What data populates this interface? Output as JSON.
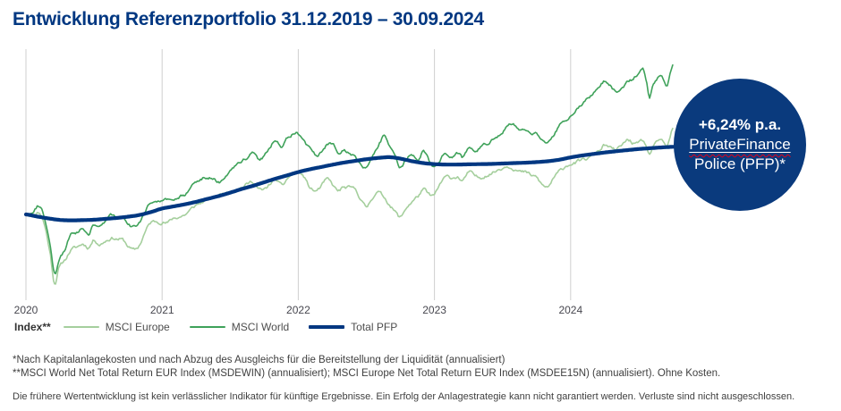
{
  "header": {
    "title": "Entwicklung Referenzportfolio 31.12.2019 – 30.09.2024"
  },
  "colors": {
    "brand_blue": "#003781",
    "msci_europe_green": "#a5cf9d",
    "msci_world_green": "#3fa25a",
    "grid_gray": "#cfcfcf",
    "axis_text": "#47474f",
    "badge_squiggle_red": "#e2001a"
  },
  "badge": {
    "line1": "+6,24% p.a.",
    "line2": "PrivateFinance",
    "line3": "Police (PFP)*",
    "bg_color": "#0a3a7d",
    "text_color": "#ffffff"
  },
  "legend": {
    "title": "Index**",
    "items": [
      {
        "label": "MSCI Europe",
        "color": "#a5cf9d"
      },
      {
        "label": "MSCI World",
        "color": "#3fa25a"
      },
      {
        "label": "Total PFP",
        "color": "#003781"
      }
    ]
  },
  "footnotes": [
    "*Nach Kapitalanlagekosten und nach Abzug des Ausgleichs für die Bereitstellung der Liquidität (annualisiert)",
    "**MSCI World Net Total Return EUR Index (MSDEWIN) (annualisiert); MSCI Europe Net Total Return EUR Index (MSDEE15N) (annualisiert). Ohne Kosten."
  ],
  "disclaimer": "Die frühere Wertentwicklung ist kein verlässlicher Indikator für künftige Ergebnisse. Ein Erfolg der Anlagestrategie kann nicht garantiert werden. Verluste sind nicht ausgeschlossen.",
  "chart_data": {
    "type": "line",
    "title": "Entwicklung Referenzportfolio 31.12.2019 – 30.09.2024",
    "x_unit": "decimal_year",
    "x_range": [
      2020.0,
      2024.95
    ],
    "x_ticks": [
      "2020",
      "2021",
      "2022",
      "2023",
      "2024"
    ],
    "x_tick_values": [
      2020,
      2021,
      2022,
      2023,
      2024
    ],
    "y_axis_visible": false,
    "index_base": 100,
    "y_range_estimate": [
      60,
      182
    ],
    "grid": "vertical-only",
    "legend_position": "bottom-left",
    "series": [
      {
        "name": "MSCI Europe",
        "color": "#a5cf9d",
        "width": 1.6,
        "noise": 1.2,
        "points": [
          [
            2020.0,
            100
          ],
          [
            2020.04,
            99.5
          ],
          [
            2020.1,
            101
          ],
          [
            2020.14,
            94
          ],
          [
            2020.18,
            80
          ],
          [
            2020.21,
            66.5
          ],
          [
            2020.24,
            73.5
          ],
          [
            2020.29,
            78
          ],
          [
            2020.33,
            82.5
          ],
          [
            2020.38,
            84
          ],
          [
            2020.42,
            85.5
          ],
          [
            2020.46,
            84
          ],
          [
            2020.5,
            87.5
          ],
          [
            2020.54,
            85.5
          ],
          [
            2020.58,
            87
          ],
          [
            2020.63,
            88.5
          ],
          [
            2020.67,
            88
          ],
          [
            2020.71,
            87.5
          ],
          [
            2020.75,
            84.5
          ],
          [
            2020.79,
            82.5
          ],
          [
            2020.83,
            84.5
          ],
          [
            2020.88,
            92
          ],
          [
            2020.92,
            96
          ],
          [
            2021.0,
            96.5
          ],
          [
            2021.04,
            96
          ],
          [
            2021.08,
            98
          ],
          [
            2021.17,
            100
          ],
          [
            2021.25,
            104.5
          ],
          [
            2021.33,
            107
          ],
          [
            2021.42,
            109.5
          ],
          [
            2021.5,
            111.5
          ],
          [
            2021.58,
            113.5
          ],
          [
            2021.63,
            115
          ],
          [
            2021.67,
            116
          ],
          [
            2021.71,
            112.5
          ],
          [
            2021.75,
            112
          ],
          [
            2021.83,
            117
          ],
          [
            2021.88,
            114
          ],
          [
            2021.92,
            117.5
          ],
          [
            2021.96,
            120
          ],
          [
            2022.0,
            120.5
          ],
          [
            2022.04,
            118.5
          ],
          [
            2022.08,
            113.5
          ],
          [
            2022.13,
            111.5
          ],
          [
            2022.17,
            114
          ],
          [
            2022.21,
            117
          ],
          [
            2022.25,
            114.5
          ],
          [
            2022.29,
            111.5
          ],
          [
            2022.33,
            113
          ],
          [
            2022.42,
            112
          ],
          [
            2022.46,
            107.5
          ],
          [
            2022.5,
            103.5
          ],
          [
            2022.54,
            108
          ],
          [
            2022.58,
            111
          ],
          [
            2022.63,
            108.5
          ],
          [
            2022.67,
            105
          ],
          [
            2022.71,
            101.5
          ],
          [
            2022.75,
            98.5
          ],
          [
            2022.79,
            103
          ],
          [
            2022.83,
            106
          ],
          [
            2022.88,
            109
          ],
          [
            2022.92,
            112
          ],
          [
            2022.96,
            109.5
          ],
          [
            2023.0,
            109.5
          ],
          [
            2023.04,
            114.5
          ],
          [
            2023.08,
            118
          ],
          [
            2023.13,
            118
          ],
          [
            2023.17,
            118.5
          ],
          [
            2023.21,
            116.5
          ],
          [
            2023.25,
            120.5
          ],
          [
            2023.29,
            119
          ],
          [
            2023.33,
            118
          ],
          [
            2023.38,
            119.5
          ],
          [
            2023.42,
            120.5
          ],
          [
            2023.5,
            123
          ],
          [
            2023.54,
            124
          ],
          [
            2023.58,
            123
          ],
          [
            2023.63,
            121
          ],
          [
            2023.67,
            120.5
          ],
          [
            2023.71,
            119
          ],
          [
            2023.75,
            118
          ],
          [
            2023.79,
            114.5
          ],
          [
            2023.83,
            113.5
          ],
          [
            2023.88,
            118
          ],
          [
            2023.92,
            121
          ],
          [
            2023.96,
            123.5
          ],
          [
            2024.0,
            125
          ],
          [
            2024.04,
            125.5
          ],
          [
            2024.08,
            126.5
          ],
          [
            2024.13,
            127.5
          ],
          [
            2024.17,
            129.5
          ],
          [
            2024.21,
            131.5
          ],
          [
            2024.25,
            134
          ],
          [
            2024.29,
            132.5
          ],
          [
            2024.33,
            131.5
          ],
          [
            2024.38,
            134
          ],
          [
            2024.42,
            136.5
          ],
          [
            2024.46,
            135
          ],
          [
            2024.5,
            134.5
          ],
          [
            2024.53,
            136
          ],
          [
            2024.56,
            132
          ],
          [
            2024.58,
            129.5
          ],
          [
            2024.6,
            132.5
          ],
          [
            2024.63,
            134.5
          ],
          [
            2024.65,
            136
          ],
          [
            2024.67,
            136.5
          ],
          [
            2024.69,
            134
          ],
          [
            2024.71,
            133
          ],
          [
            2024.73,
            137.5
          ],
          [
            2024.75,
            142
          ]
        ]
      },
      {
        "name": "MSCI World",
        "color": "#3fa25a",
        "width": 1.6,
        "noise": 1.2,
        "points": [
          [
            2020.0,
            100
          ],
          [
            2020.04,
            101.5
          ],
          [
            2020.1,
            104.5
          ],
          [
            2020.14,
            97
          ],
          [
            2020.18,
            83
          ],
          [
            2020.21,
            70.5
          ],
          [
            2020.24,
            77
          ],
          [
            2020.29,
            83
          ],
          [
            2020.33,
            90
          ],
          [
            2020.38,
            91.5
          ],
          [
            2020.42,
            93
          ],
          [
            2020.46,
            91
          ],
          [
            2020.5,
            95
          ],
          [
            2020.54,
            93.5
          ],
          [
            2020.58,
            96.5
          ],
          [
            2020.63,
            99.5
          ],
          [
            2020.67,
            98.5
          ],
          [
            2020.71,
            98
          ],
          [
            2020.75,
            95.5
          ],
          [
            2020.79,
            93.5
          ],
          [
            2020.83,
            96
          ],
          [
            2020.88,
            102
          ],
          [
            2020.92,
            106.3
          ],
          [
            2021.0,
            106.5
          ],
          [
            2021.04,
            106.8
          ],
          [
            2021.08,
            107.5
          ],
          [
            2021.17,
            110
          ],
          [
            2021.25,
            116.5
          ],
          [
            2021.33,
            118.5
          ],
          [
            2021.42,
            116
          ],
          [
            2021.46,
            119
          ],
          [
            2021.5,
            122
          ],
          [
            2021.58,
            126
          ],
          [
            2021.63,
            128
          ],
          [
            2021.67,
            131
          ],
          [
            2021.71,
            127.5
          ],
          [
            2021.75,
            129.5
          ],
          [
            2021.83,
            136
          ],
          [
            2021.88,
            133.5
          ],
          [
            2021.92,
            137.5
          ],
          [
            2021.96,
            139.5
          ],
          [
            2022.0,
            139.5
          ],
          [
            2022.04,
            136
          ],
          [
            2022.08,
            132.5
          ],
          [
            2022.13,
            129
          ],
          [
            2022.17,
            131.5
          ],
          [
            2022.21,
            134
          ],
          [
            2022.25,
            134.5
          ],
          [
            2022.29,
            130.5
          ],
          [
            2022.33,
            131.5
          ],
          [
            2022.42,
            128.5
          ],
          [
            2022.46,
            124.5
          ],
          [
            2022.5,
            122.5
          ],
          [
            2022.54,
            127.5
          ],
          [
            2022.58,
            133
          ],
          [
            2022.63,
            138
          ],
          [
            2022.67,
            132.5
          ],
          [
            2022.71,
            127.5
          ],
          [
            2022.75,
            122.5
          ],
          [
            2022.79,
            126.5
          ],
          [
            2022.83,
            130
          ],
          [
            2022.88,
            126.5
          ],
          [
            2022.92,
            132
          ],
          [
            2022.96,
            126.5
          ],
          [
            2023.0,
            123.5
          ],
          [
            2023.04,
            127.5
          ],
          [
            2023.08,
            130.5
          ],
          [
            2023.13,
            128.5
          ],
          [
            2023.17,
            130.5
          ],
          [
            2023.21,
            128
          ],
          [
            2023.25,
            131.5
          ],
          [
            2023.29,
            131
          ],
          [
            2023.33,
            132.5
          ],
          [
            2023.38,
            134
          ],
          [
            2023.42,
            136
          ],
          [
            2023.5,
            140.5
          ],
          [
            2023.54,
            143.5
          ],
          [
            2023.58,
            144
          ],
          [
            2023.63,
            142.5
          ],
          [
            2023.67,
            142
          ],
          [
            2023.71,
            140
          ],
          [
            2023.75,
            139.5
          ],
          [
            2023.79,
            135.5
          ],
          [
            2023.83,
            134
          ],
          [
            2023.88,
            139
          ],
          [
            2023.92,
            144
          ],
          [
            2023.96,
            146.5
          ],
          [
            2024.0,
            148.5
          ],
          [
            2024.04,
            151
          ],
          [
            2024.08,
            154
          ],
          [
            2024.13,
            157
          ],
          [
            2024.17,
            160
          ],
          [
            2024.21,
            162.5
          ],
          [
            2024.25,
            165.5
          ],
          [
            2024.29,
            163
          ],
          [
            2024.33,
            160.5
          ],
          [
            2024.38,
            163
          ],
          [
            2024.42,
            165.5
          ],
          [
            2024.46,
            167
          ],
          [
            2024.5,
            170
          ],
          [
            2024.53,
            172.5
          ],
          [
            2024.56,
            165
          ],
          [
            2024.58,
            157.5
          ],
          [
            2024.6,
            163
          ],
          [
            2024.63,
            167
          ],
          [
            2024.65,
            169.5
          ],
          [
            2024.67,
            168
          ],
          [
            2024.69,
            164
          ],
          [
            2024.71,
            162.5
          ],
          [
            2024.73,
            168
          ],
          [
            2024.75,
            172.5
          ]
        ]
      },
      {
        "name": "Total PFP",
        "color": "#003781",
        "width": 4.2,
        "noise": 0,
        "points": [
          [
            2020.0,
            100
          ],
          [
            2020.08,
            99.0
          ],
          [
            2020.17,
            98.0
          ],
          [
            2020.25,
            97.3
          ],
          [
            2020.33,
            97.1
          ],
          [
            2020.42,
            97.2
          ],
          [
            2020.5,
            97.4
          ],
          [
            2020.58,
            97.8
          ],
          [
            2020.67,
            98.3
          ],
          [
            2020.75,
            98.9
          ],
          [
            2020.83,
            99.7
          ],
          [
            2020.92,
            101.2
          ],
          [
            2021.0,
            102.9
          ],
          [
            2021.08,
            103.9
          ],
          [
            2021.17,
            105.0
          ],
          [
            2021.25,
            106.2
          ],
          [
            2021.33,
            107.6
          ],
          [
            2021.42,
            109.1
          ],
          [
            2021.5,
            110.7
          ],
          [
            2021.58,
            112.4
          ],
          [
            2021.67,
            114.1
          ],
          [
            2021.75,
            115.8
          ],
          [
            2021.83,
            117.5
          ],
          [
            2021.92,
            119.2
          ],
          [
            2022.0,
            120.8
          ],
          [
            2022.08,
            122.1
          ],
          [
            2022.17,
            123.3
          ],
          [
            2022.25,
            124.4
          ],
          [
            2022.33,
            125.4
          ],
          [
            2022.42,
            126.3
          ],
          [
            2022.5,
            127.1
          ],
          [
            2022.58,
            127.7
          ],
          [
            2022.67,
            128.1
          ],
          [
            2022.75,
            127.4
          ],
          [
            2022.83,
            126.2
          ],
          [
            2022.92,
            125.2
          ],
          [
            2023.0,
            124.7
          ],
          [
            2023.08,
            124.5
          ],
          [
            2023.17,
            124.5
          ],
          [
            2023.25,
            124.6
          ],
          [
            2023.33,
            124.7
          ],
          [
            2023.42,
            124.8
          ],
          [
            2023.5,
            125.0
          ],
          [
            2023.58,
            125.2
          ],
          [
            2023.67,
            125.4
          ],
          [
            2023.75,
            125.7
          ],
          [
            2023.83,
            126.1
          ],
          [
            2023.92,
            126.9
          ],
          [
            2024.0,
            128.0
          ],
          [
            2024.08,
            128.9
          ],
          [
            2024.17,
            129.7
          ],
          [
            2024.25,
            130.4
          ],
          [
            2024.33,
            131.0
          ],
          [
            2024.42,
            131.6
          ],
          [
            2024.5,
            132.1
          ],
          [
            2024.58,
            132.5
          ],
          [
            2024.67,
            132.9
          ],
          [
            2024.75,
            133.2
          ],
          [
            2024.85,
            133.4
          ]
        ]
      }
    ],
    "annotation": {
      "text": "+6,24% p.a. PrivateFinance Police (PFP)*",
      "value_pct_pa": 6.24
    }
  }
}
